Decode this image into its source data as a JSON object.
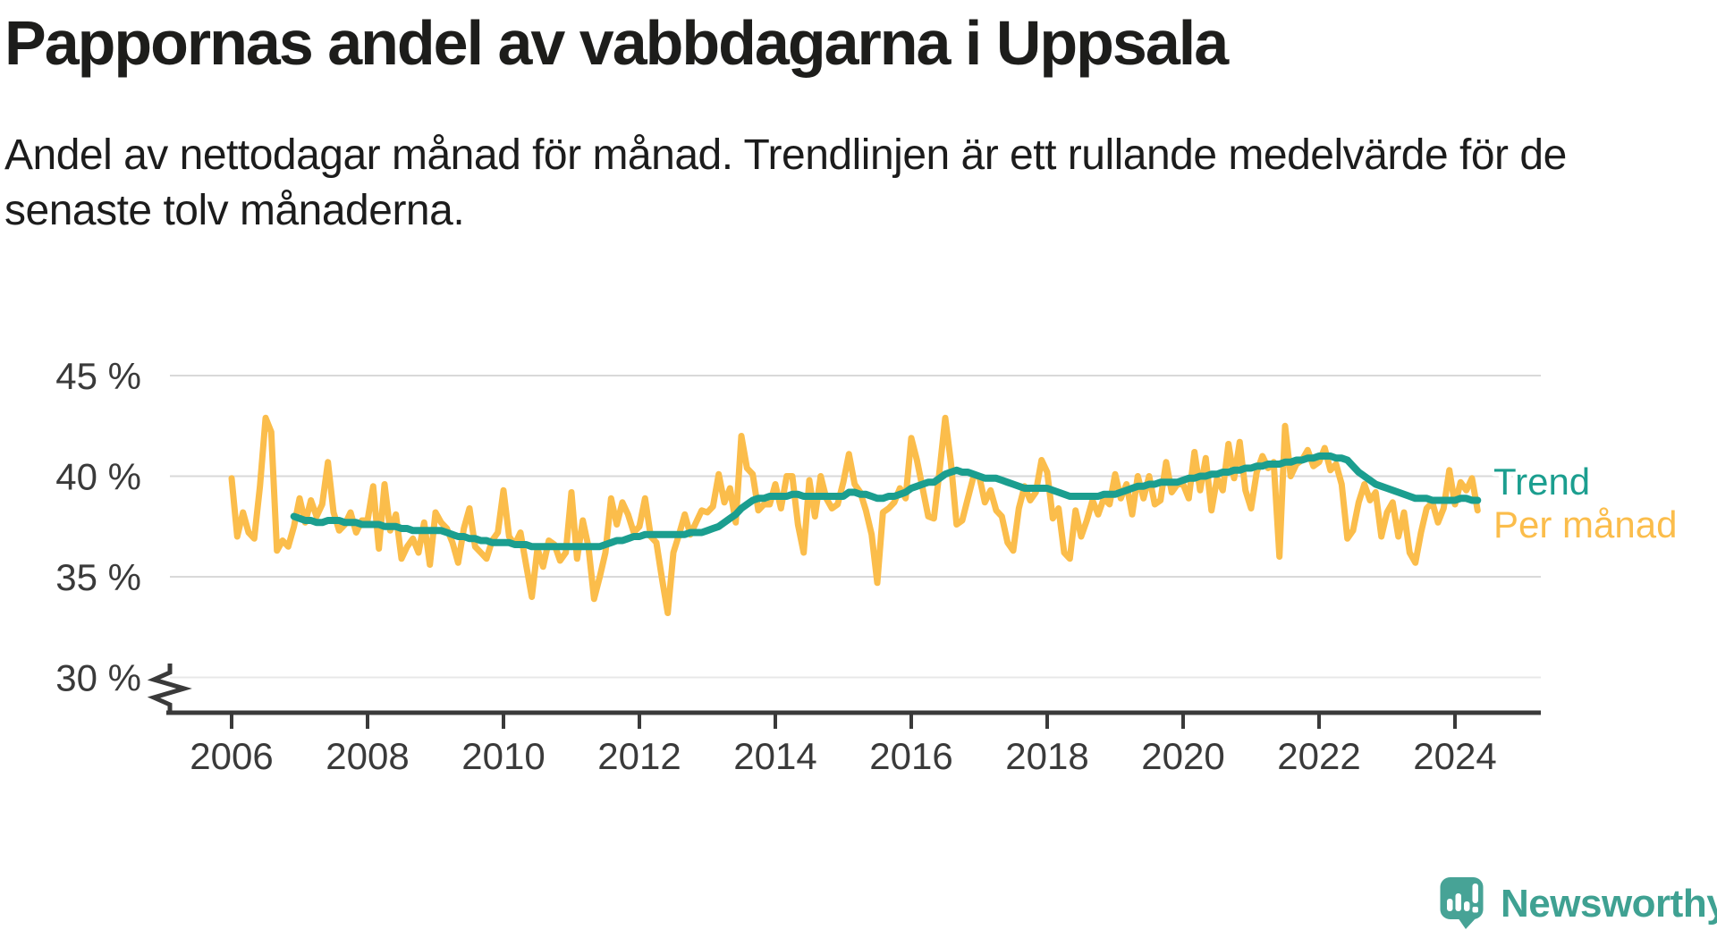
{
  "header": {
    "title": "Pappornas andel av vabbdagarna i Uppsala",
    "subtitle_line1": "Andel av nettodagar månad för månad. Trendlinjen är ett rullande medelvärde för de",
    "subtitle_line2": "senaste tolv månaderna."
  },
  "legend": {
    "trend_label": "Trend",
    "monthly_label": "Per månad"
  },
  "logo": {
    "text": "Newsworthy"
  },
  "colors": {
    "monthly": "#FBBD4B",
    "trend": "#1B9E8F",
    "grid": "#D9D9D9",
    "grid_light": "#E8E8E8",
    "axis": "#3A3A3A",
    "text": "#1C1C1C",
    "brand_fill": "#47A396",
    "brand_text": "#3FA192"
  },
  "chart_data": {
    "type": "line",
    "title": "Pappornas andel av vabbdagarna i Uppsala",
    "xlabel": "",
    "ylabel": "",
    "unit": "%",
    "frequency": "monthly",
    "x_start": "2006-01",
    "x_end": "2024-05",
    "ylim": [
      29.5,
      45.5
    ],
    "axis_break_below_value": 30,
    "grid": true,
    "legend_position": "right-of-line-ends",
    "y_ticks": [
      {
        "value": 45,
        "label": "45 %"
      },
      {
        "value": 40,
        "label": "40 %"
      },
      {
        "value": 35,
        "label": "35 %"
      },
      {
        "value": 30,
        "label": "30 %"
      }
    ],
    "x_ticks": [
      {
        "value": 2006,
        "label": "2006"
      },
      {
        "value": 2008,
        "label": "2008"
      },
      {
        "value": 2010,
        "label": "2010"
      },
      {
        "value": 2012,
        "label": "2012"
      },
      {
        "value": 2014,
        "label": "2014"
      },
      {
        "value": 2016,
        "label": "2016"
      },
      {
        "value": 2018,
        "label": "2018"
      },
      {
        "value": 2020,
        "label": "2020"
      },
      {
        "value": 2022,
        "label": "2022"
      },
      {
        "value": 2024,
        "label": "2024"
      }
    ],
    "series": [
      {
        "name": "Per månad",
        "color": "#FBBD4B",
        "start": "2006-01",
        "values": [
          39.9,
          37.0,
          38.2,
          37.2,
          36.9,
          39.5,
          42.9,
          42.2,
          36.3,
          36.8,
          36.5,
          37.5,
          38.9,
          37.7,
          38.8,
          38.0,
          38.6,
          40.7,
          38.2,
          37.3,
          37.6,
          38.2,
          37.2,
          37.8,
          37.8,
          39.5,
          36.4,
          39.6,
          37.3,
          38.1,
          35.9,
          36.5,
          36.9,
          36.2,
          37.7,
          35.6,
          38.2,
          37.7,
          37.4,
          36.7,
          35.7,
          37.4,
          38.4,
          36.5,
          36.2,
          35.9,
          36.8,
          37.2,
          39.3,
          37.0,
          36.6,
          37.2,
          35.6,
          34.0,
          36.4,
          35.5,
          36.8,
          36.6,
          35.8,
          36.2,
          39.2,
          35.9,
          37.8,
          36.5,
          33.9,
          35.0,
          36.2,
          38.9,
          37.6,
          38.7,
          38.1,
          37.2,
          37.5,
          38.9,
          37.0,
          36.7,
          34.9,
          33.2,
          36.2,
          37.1,
          38.1,
          37.1,
          37.7,
          38.3,
          38.2,
          38.5,
          40.1,
          38.7,
          39.4,
          37.7,
          42.0,
          40.4,
          40.1,
          38.3,
          38.6,
          38.6,
          39.6,
          38.4,
          40.0,
          40.0,
          37.6,
          36.2,
          39.8,
          38.0,
          40.0,
          38.9,
          38.4,
          38.6,
          39.7,
          41.1,
          39.6,
          39.2,
          38.3,
          37.1,
          34.7,
          38.2,
          38.4,
          38.7,
          39.4,
          38.9,
          41.9,
          40.8,
          39.4,
          38.0,
          37.9,
          40.3,
          42.9,
          40.7,
          37.6,
          37.8,
          38.9,
          40.0,
          40.0,
          38.7,
          39.3,
          38.3,
          38.0,
          36.7,
          36.3,
          38.4,
          39.5,
          38.8,
          39.2,
          40.8,
          40.2,
          37.9,
          38.4,
          36.2,
          35.9,
          38.3,
          37.0,
          37.8,
          38.8,
          38.1,
          38.9,
          38.6,
          40.1,
          38.9,
          39.6,
          38.1,
          40.0,
          38.9,
          40.0,
          38.6,
          38.8,
          40.7,
          39.2,
          39.6,
          39.6,
          38.9,
          41.2,
          39.3,
          40.9,
          38.3,
          39.9,
          39.3,
          41.6,
          39.9,
          41.7,
          39.3,
          38.4,
          40.2,
          41.0,
          40.4,
          40.7,
          36.0,
          42.5,
          40.0,
          40.6,
          40.8,
          41.3,
          40.5,
          40.7,
          41.4,
          40.3,
          40.6,
          39.6,
          36.9,
          37.3,
          38.7,
          39.6,
          38.8,
          39.2,
          37.0,
          38.2,
          38.7,
          37.0,
          38.2,
          36.2,
          35.7,
          37.2,
          38.4,
          38.7,
          37.7,
          38.4,
          40.3,
          38.6,
          39.7,
          39.3,
          39.9,
          38.3
        ]
      },
      {
        "name": "Trend",
        "color": "#1B9E8F",
        "start": "2006-12",
        "values": [
          38.0,
          37.9,
          37.8,
          37.8,
          37.7,
          37.7,
          37.8,
          37.8,
          37.8,
          37.7,
          37.7,
          37.7,
          37.6,
          37.6,
          37.6,
          37.6,
          37.5,
          37.5,
          37.5,
          37.4,
          37.4,
          37.3,
          37.3,
          37.3,
          37.3,
          37.3,
          37.3,
          37.2,
          37.1,
          37.0,
          37.0,
          36.9,
          36.9,
          36.8,
          36.8,
          36.7,
          36.7,
          36.7,
          36.7,
          36.6,
          36.6,
          36.6,
          36.5,
          36.5,
          36.5,
          36.5,
          36.5,
          36.5,
          36.5,
          36.5,
          36.5,
          36.5,
          36.5,
          36.5,
          36.5,
          36.6,
          36.7,
          36.8,
          36.8,
          36.9,
          37.0,
          37.0,
          37.1,
          37.1,
          37.1,
          37.1,
          37.1,
          37.1,
          37.1,
          37.1,
          37.2,
          37.2,
          37.2,
          37.3,
          37.4,
          37.5,
          37.7,
          37.9,
          38.1,
          38.4,
          38.6,
          38.8,
          38.9,
          38.9,
          39.0,
          39.0,
          39.0,
          39.0,
          39.1,
          39.1,
          39.0,
          39.0,
          39.0,
          39.0,
          39.0,
          39.0,
          39.0,
          39.0,
          39.2,
          39.2,
          39.1,
          39.1,
          39.0,
          38.9,
          38.9,
          39.0,
          39.0,
          39.1,
          39.2,
          39.4,
          39.5,
          39.6,
          39.7,
          39.7,
          39.9,
          40.1,
          40.2,
          40.3,
          40.2,
          40.2,
          40.1,
          40.0,
          39.9,
          39.9,
          39.9,
          39.8,
          39.7,
          39.6,
          39.5,
          39.4,
          39.4,
          39.4,
          39.4,
          39.4,
          39.3,
          39.2,
          39.1,
          39.0,
          39.0,
          39.0,
          39.0,
          39.0,
          39.0,
          39.1,
          39.1,
          39.1,
          39.2,
          39.3,
          39.4,
          39.5,
          39.5,
          39.6,
          39.6,
          39.7,
          39.7,
          39.7,
          39.7,
          39.8,
          39.9,
          39.9,
          40.0,
          40.0,
          40.1,
          40.1,
          40.2,
          40.2,
          40.3,
          40.3,
          40.4,
          40.4,
          40.5,
          40.5,
          40.6,
          40.6,
          40.6,
          40.7,
          40.7,
          40.8,
          40.8,
          40.9,
          40.9,
          41.0,
          41.0,
          41.0,
          40.9,
          40.9,
          40.8,
          40.5,
          40.2,
          40.0,
          39.8,
          39.6,
          39.5,
          39.4,
          39.3,
          39.2,
          39.1,
          39.0,
          38.9,
          38.9,
          38.9,
          38.8,
          38.8,
          38.8,
          38.8,
          38.8,
          38.9,
          38.9,
          38.8,
          38.8
        ]
      }
    ]
  }
}
